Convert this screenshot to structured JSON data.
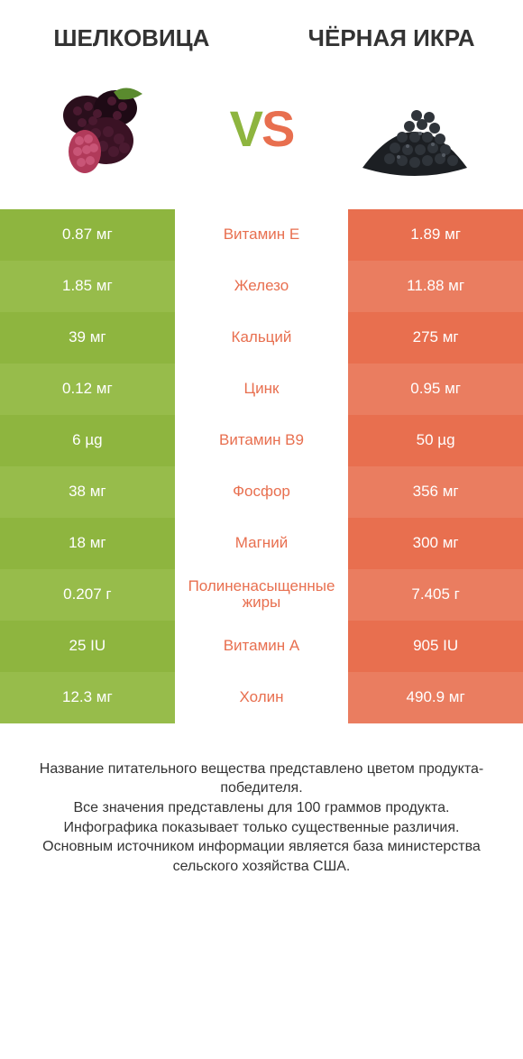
{
  "colors": {
    "left_bg": "#8eb53f",
    "left_bg_alt": "#97bc4b",
    "right_bg": "#e86f4f",
    "right_bg_alt": "#ea7d60",
    "mid_text_left": "#e86f4f",
    "mid_text_right": "#e86f4f",
    "title_color": "#333333"
  },
  "header": {
    "left_title": "ШЕЛКОВИЦА",
    "right_title": "ЧЁРНАЯ ИКРА",
    "vs_v": "V",
    "vs_s": "S"
  },
  "table": {
    "type": "comparison-table",
    "rows": [
      {
        "left": "0.87 мг",
        "label": "Витамин E",
        "right": "1.89 мг",
        "winner": "right"
      },
      {
        "left": "1.85 мг",
        "label": "Железо",
        "right": "11.88 мг",
        "winner": "right"
      },
      {
        "left": "39 мг",
        "label": "Кальций",
        "right": "275 мг",
        "winner": "right"
      },
      {
        "left": "0.12 мг",
        "label": "Цинк",
        "right": "0.95 мг",
        "winner": "right"
      },
      {
        "left": "6 µg",
        "label": "Витамин B9",
        "right": "50 µg",
        "winner": "right"
      },
      {
        "left": "38 мг",
        "label": "Фосфор",
        "right": "356 мг",
        "winner": "right"
      },
      {
        "left": "18 мг",
        "label": "Магний",
        "right": "300 мг",
        "winner": "right"
      },
      {
        "left": "0.207 г",
        "label": "Полиненасыщенные жиры",
        "right": "7.405 г",
        "winner": "right"
      },
      {
        "left": "25 IU",
        "label": "Витамин A",
        "right": "905 IU",
        "winner": "right"
      },
      {
        "left": "12.3 мг",
        "label": "Холин",
        "right": "490.9 мг",
        "winner": "right"
      }
    ]
  },
  "footer": {
    "line1": "Название питательного вещества представлено цветом продукта-победителя.",
    "line2": "Все значения представлены для 100 граммов продукта.",
    "line3": "Инфографика показывает только существенные различия.",
    "line4": "Основным источником информации является база министерства сельского хозяйства США."
  }
}
